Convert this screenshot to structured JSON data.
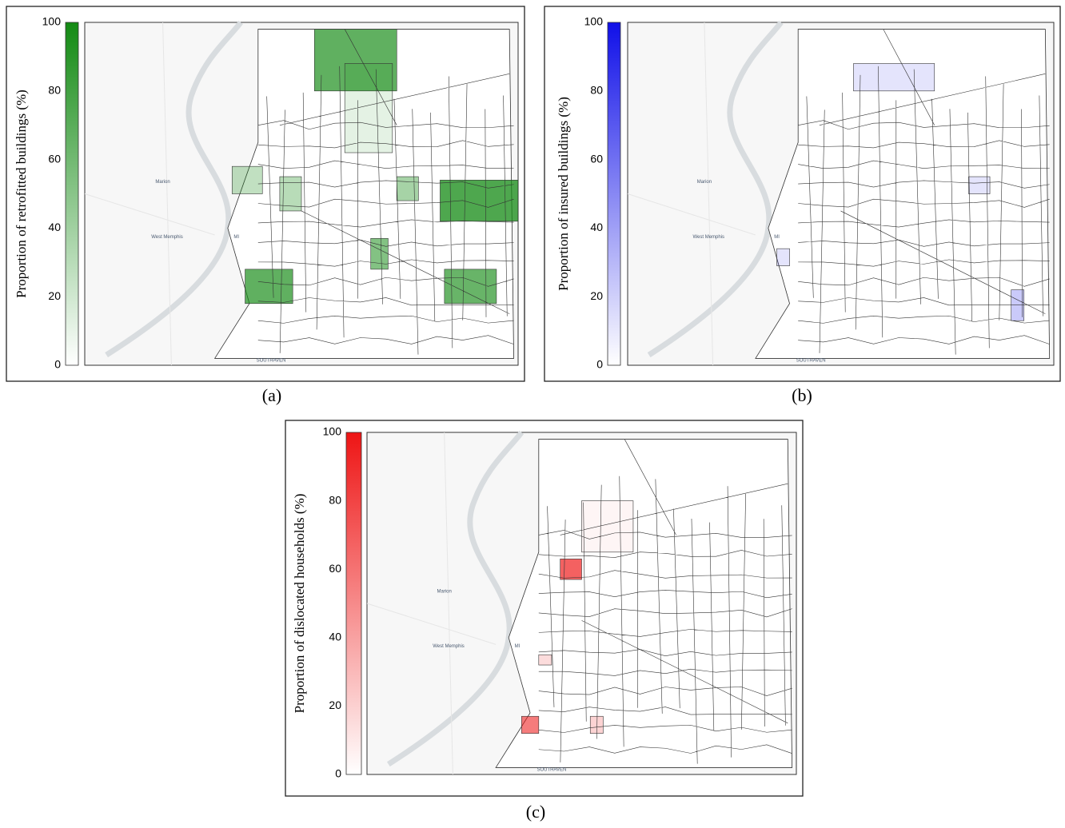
{
  "panels": [
    {
      "label": "(a)",
      "colorbar_title": "Proportion of retrofitted buildings (%)",
      "color": "#138a13",
      "range": [
        0,
        100
      ],
      "ticks": [
        0,
        20,
        40,
        60,
        80,
        100
      ],
      "places": [
        "Marion",
        "West Memphis",
        "MI",
        "SOUTHAVEN"
      ]
    },
    {
      "label": "(b)",
      "colorbar_title": "Proportion of insured buildings (%)",
      "color": "#1010e8",
      "range": [
        0,
        100
      ],
      "ticks": [
        0,
        20,
        40,
        60,
        80,
        100
      ],
      "places": [
        "Marion",
        "West Memphis",
        "MI",
        "SOUTHAVEN"
      ]
    },
    {
      "label": "(c)",
      "colorbar_title": "Proportion of dislocated households (%)",
      "color": "#ee1515",
      "range": [
        0,
        100
      ],
      "ticks": [
        0,
        20,
        40,
        60,
        80,
        100
      ],
      "places": [
        "Marion",
        "West Memphis",
        "MI",
        "SOUTHAVEN"
      ]
    }
  ]
}
